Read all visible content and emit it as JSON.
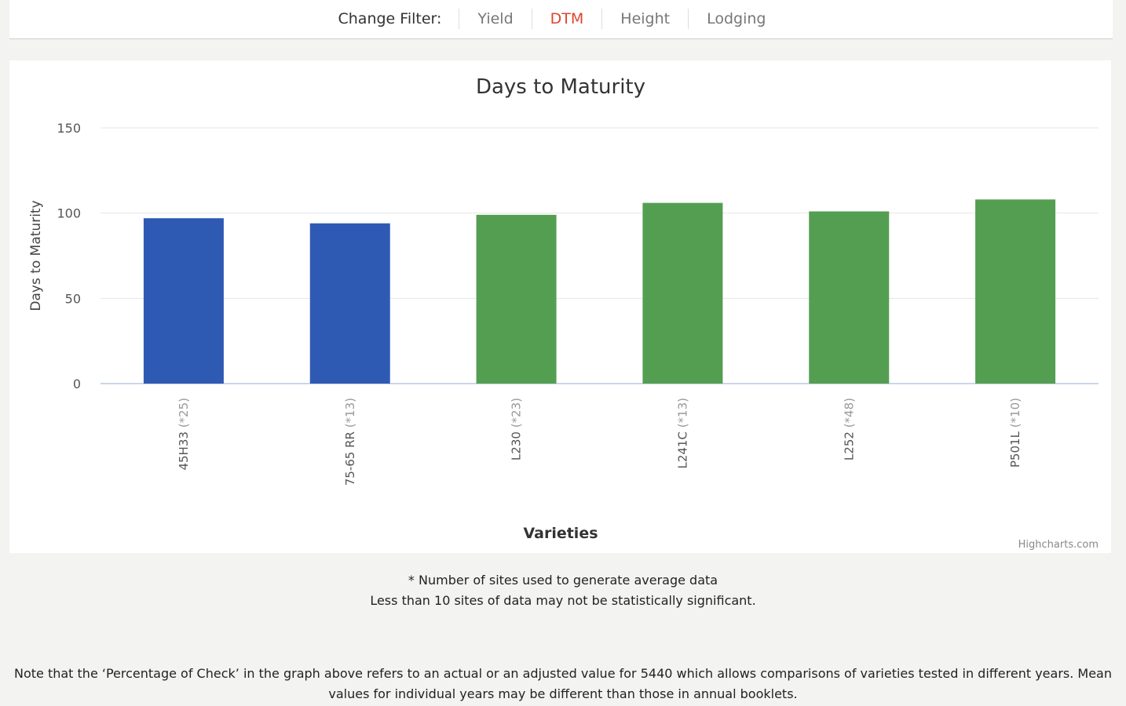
{
  "filter": {
    "label": "Change Filter:",
    "items": [
      "Yield",
      "DTM",
      "Height",
      "Lodging"
    ],
    "active": "DTM"
  },
  "colors": {
    "blue": "#2f5ab4",
    "green": "#549e51",
    "active_filter": "#e0452e"
  },
  "chart_data": {
    "type": "bar",
    "title": "Days to Maturity",
    "xlabel": "Varieties",
    "ylabel": "Days to Maturity",
    "ylim": [
      0,
      150
    ],
    "yticks": [
      0,
      50,
      100,
      150
    ],
    "grid": true,
    "credits": "Highcharts.com",
    "categories": [
      {
        "name": "45H33",
        "sites": "(*25)",
        "value": 97,
        "color": "blue"
      },
      {
        "name": "75-65 RR",
        "sites": "(*13)",
        "value": 94,
        "color": "blue"
      },
      {
        "name": "L230",
        "sites": "(*23)",
        "value": 99,
        "color": "green"
      },
      {
        "name": "L241C",
        "sites": "(*13)",
        "value": 106,
        "color": "green"
      },
      {
        "name": "L252",
        "sites": "(*48)",
        "value": 101,
        "color": "green"
      },
      {
        "name": "P501L",
        "sites": "(*10)",
        "value": 108,
        "color": "green"
      }
    ]
  },
  "notes": {
    "line1": "* Number of sites used to generate average data",
    "line2": "Less than 10 sites of data may not be statistically significant.",
    "footer_line1": "Note that the ‘Percentage of Check’ in the graph above refers to an actual or an adjusted value for 5440 which allows comparisons of varieties tested in different years. Mean",
    "footer_line2": "values for individual years may be different than those in annual booklets."
  }
}
